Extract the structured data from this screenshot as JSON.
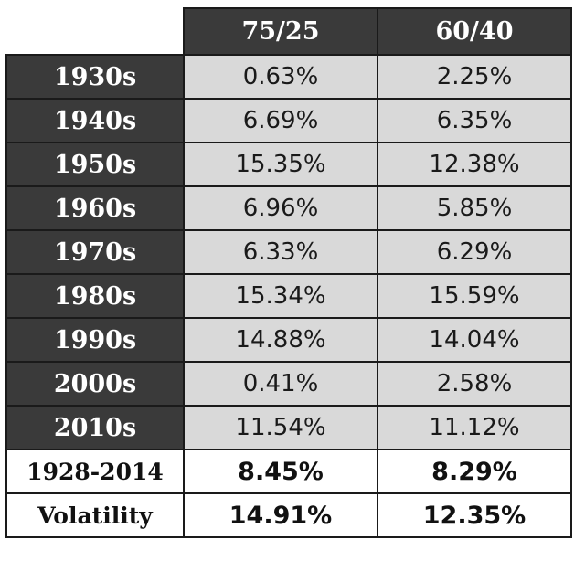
{
  "chart_data": {
    "type": "table",
    "columns": [
      "75/25",
      "60/40"
    ],
    "rows": [
      {
        "label": "1930s",
        "values": [
          "0.63%",
          "2.25%"
        ]
      },
      {
        "label": "1940s",
        "values": [
          "6.69%",
          "6.35%"
        ]
      },
      {
        "label": "1950s",
        "values": [
          "15.35%",
          "12.38%"
        ]
      },
      {
        "label": "1960s",
        "values": [
          "6.96%",
          "5.85%"
        ]
      },
      {
        "label": "1970s",
        "values": [
          "6.33%",
          "6.29%"
        ]
      },
      {
        "label": "1980s",
        "values": [
          "15.34%",
          "15.59%"
        ]
      },
      {
        "label": "1990s",
        "values": [
          "14.88%",
          "14.04%"
        ]
      },
      {
        "label": "2000s",
        "values": [
          "0.41%",
          "2.58%"
        ]
      },
      {
        "label": "2010s",
        "values": [
          "11.54%",
          "11.12%"
        ]
      }
    ],
    "summary_rows": [
      {
        "label": "1928-2014",
        "values": [
          "8.45%",
          "8.29%"
        ]
      },
      {
        "label": "Volatility",
        "values": [
          "14.91%",
          "12.35%"
        ]
      }
    ]
  },
  "colors": {
    "header_bg": "#3a3a3a",
    "header_text": "#ffffff",
    "cell_bg": "#d9d9d9",
    "summary_bg": "#ffffff",
    "border": "#1a1a1a"
  }
}
